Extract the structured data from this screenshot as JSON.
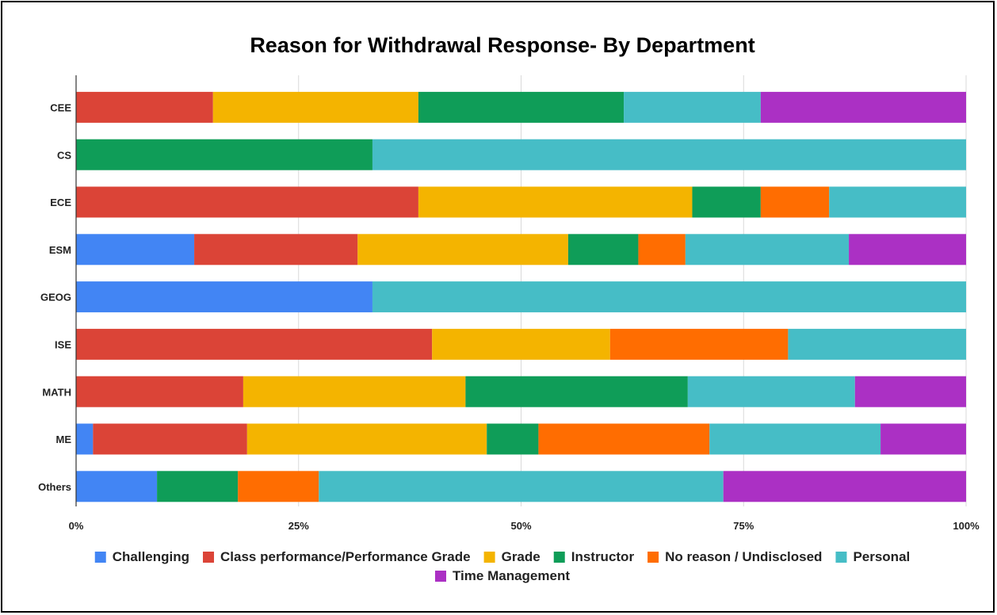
{
  "chart_data": {
    "type": "bar",
    "orientation": "horizontal",
    "stacked": "percent",
    "title": "Reason for Withdrawal Response- By Department",
    "xlabel": "",
    "ylabel": "",
    "xlim": [
      0,
      100
    ],
    "x_ticks": [
      "0%",
      "25%",
      "50%",
      "75%",
      "100%"
    ],
    "grid": "vertical",
    "legend_position": "bottom",
    "categories": [
      "CEE",
      "CS",
      "ECE",
      "ESM",
      "GEOG",
      "ISE",
      "MATH",
      "ME",
      "Others"
    ],
    "series": [
      {
        "name": "Challenging",
        "color": "#4285F4",
        "values": [
          0,
          0,
          0,
          13.3,
          33.3,
          0,
          0,
          1.9,
          9.1
        ]
      },
      {
        "name": "Class performance/Performance Grade",
        "color": "#DB4437",
        "values": [
          15.4,
          0,
          38.5,
          18.4,
          0,
          40.0,
          18.8,
          17.3,
          0
        ]
      },
      {
        "name": "Grade",
        "color": "#F4B400",
        "values": [
          23.1,
          0,
          30.8,
          23.7,
          0,
          20.0,
          25.0,
          26.9,
          0
        ]
      },
      {
        "name": "Instructor",
        "color": "#0F9D58",
        "values": [
          23.1,
          33.3,
          7.7,
          7.9,
          0,
          0,
          25.0,
          5.8,
          9.1
        ]
      },
      {
        "name": "No reason / Undisclosed",
        "color": "#FF6D01",
        "values": [
          0,
          0,
          7.7,
          5.3,
          0,
          20.0,
          0,
          19.2,
          9.1
        ]
      },
      {
        "name": "Personal",
        "color": "#46BDC6",
        "values": [
          15.4,
          66.7,
          15.4,
          18.4,
          66.7,
          20.0,
          18.8,
          19.2,
          45.5
        ]
      },
      {
        "name": "Time Management",
        "color": "#AB30C4",
        "values": [
          23.1,
          0,
          0,
          13.2,
          0,
          0,
          12.5,
          9.6,
          27.3
        ]
      }
    ]
  }
}
